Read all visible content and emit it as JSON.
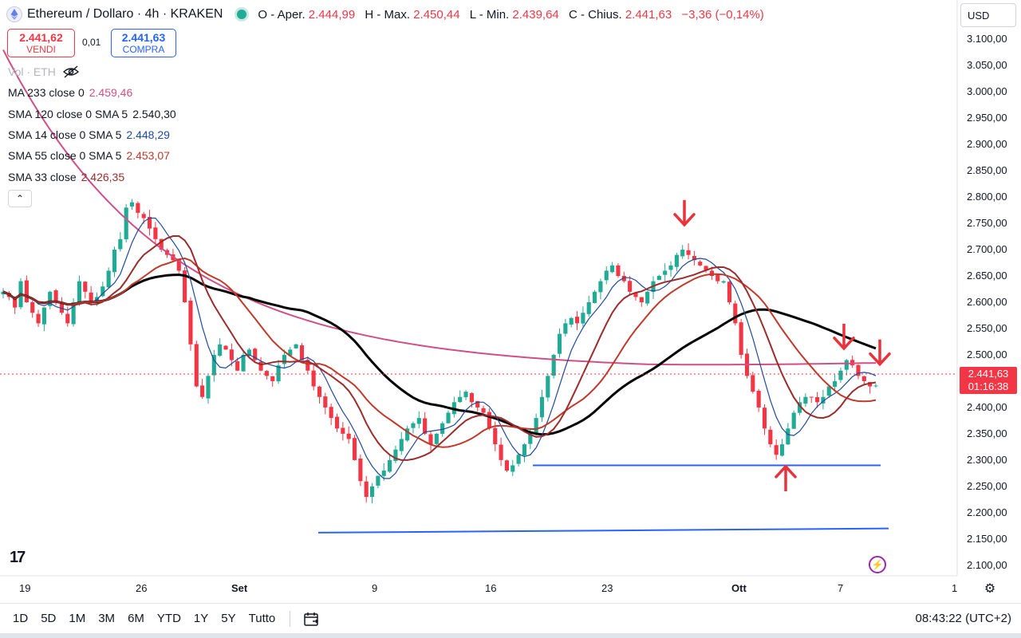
{
  "header": {
    "symbol_title": "Ethereum / Dollaro · 4h · KRAKEN",
    "open_label": "O - Aper.",
    "open_value": "2.444,99",
    "high_label": "H - Max.",
    "high_value": "2.450,44",
    "low_label": "L - Min.",
    "low_value": "2.439,64",
    "close_label": "C - Chius.",
    "close_value": "2.441,63",
    "change": "−3,36 (−0,14%)"
  },
  "currency": "USD",
  "trade": {
    "sell_price": "2.441,62",
    "sell_label": "VENDI",
    "spread": "0,01",
    "buy_price": "2.441,63",
    "buy_label": "COMPRA"
  },
  "volume_label": "Vol · ETH",
  "indicators": [
    {
      "label": "MA 233 close 0",
      "value": "2.459,46",
      "color": "#d04f86"
    },
    {
      "label": "SMA 120 close 0 SMA 5",
      "value": "2.540,30",
      "color": "#131722"
    },
    {
      "label": "SMA 14 close 0 SMA 5",
      "value": "2.448,29",
      "color": "#1e4a9c"
    },
    {
      "label": "SMA 55 close 0 SMA 5",
      "value": "2.453,07",
      "color": "#c0392b"
    },
    {
      "label": "SMA 33 close",
      "value": "2.426,35",
      "color": "#9b2c2c"
    }
  ],
  "price_scale": [
    "3.100,00",
    "3.050,00",
    "3.000,00",
    "2.950,00",
    "2.900,00",
    "2.850,00",
    "2.800,00",
    "2.750,00",
    "2.700,00",
    "2.650,00",
    "2.600,00",
    "2.550,00",
    "2.500,00",
    "2.450,00",
    "2.400,00",
    "2.350,00",
    "2.300,00",
    "2.250,00",
    "2.200,00",
    "2.150,00",
    "2.100,00"
  ],
  "last_price": {
    "price": "2.441,63",
    "countdown": "01:16:38"
  },
  "time_axis": [
    {
      "label": "19",
      "bold": false
    },
    {
      "label": "26",
      "bold": false
    },
    {
      "label": "Set",
      "bold": true
    },
    {
      "label": "9",
      "bold": false
    },
    {
      "label": "16",
      "bold": false
    },
    {
      "label": "23",
      "bold": false
    },
    {
      "label": "Ott",
      "bold": true
    },
    {
      "label": "7",
      "bold": false
    },
    {
      "label": "1",
      "bold": false
    }
  ],
  "ranges": [
    "1D",
    "5D",
    "1M",
    "3M",
    "6M",
    "YTD",
    "1Y",
    "5Y",
    "Tutto"
  ],
  "clock": "08:43:22 (UTC+2)",
  "colors": {
    "up": "#22ab94",
    "down": "#f23645",
    "ma233": "#d04f86",
    "sma120": "#000000",
    "sma14": "#1e4a9c",
    "sma55": "#c0392b",
    "sma33": "#9b2c2c",
    "support": "#2962ff",
    "arrows": "#e8323c"
  },
  "chart_data": {
    "type": "candlestick",
    "ylim": [
      2080,
      3120
    ],
    "close_series": [
      2620,
      2610,
      2590,
      2640,
      2600,
      2580,
      2560,
      2590,
      2620,
      2600,
      2580,
      2560,
      2600,
      2640,
      2620,
      2600,
      2610,
      2630,
      2660,
      2700,
      2720,
      2780,
      2790,
      2770,
      2760,
      2740,
      2720,
      2700,
      2690,
      2680,
      2660,
      2600,
      2520,
      2440,
      2420,
      2460,
      2500,
      2520,
      2510,
      2490,
      2470,
      2500,
      2510,
      2490,
      2470,
      2460,
      2450,
      2480,
      2500,
      2510,
      2520,
      2490,
      2470,
      2440,
      2420,
      2400,
      2380,
      2360,
      2350,
      2340,
      2300,
      2260,
      2230,
      2250,
      2270,
      2280,
      2300,
      2320,
      2340,
      2360,
      2370,
      2380,
      2350,
      2330,
      2350,
      2370,
      2390,
      2410,
      2420,
      2430,
      2410,
      2400,
      2390,
      2360,
      2330,
      2300,
      2280,
      2290,
      2310,
      2330,
      2350,
      2380,
      2420,
      2460,
      2500,
      2540,
      2560,
      2570,
      2560,
      2580,
      2600,
      2620,
      2640,
      2660,
      2670,
      2650,
      2640,
      2620,
      2610,
      2600,
      2620,
      2640,
      2650,
      2660,
      2670,
      2690,
      2700,
      2690,
      2680,
      2670,
      2660,
      2650,
      2640,
      2640,
      2600,
      2560,
      2500,
      2460,
      2430,
      2400,
      2360,
      2330,
      2310,
      2330,
      2360,
      2390,
      2410,
      2420,
      2420,
      2410,
      2420,
      2440,
      2450,
      2470,
      2490,
      2480,
      2460,
      2450,
      2440,
      2441.63
    ],
    "support_lines": [
      {
        "from": 2290,
        "to": 2290,
        "label": ""
      },
      {
        "from": 2162,
        "to": 2170,
        "label": ""
      }
    ],
    "annotations": [
      {
        "type": "arrow-down",
        "at_price": 2770
      },
      {
        "type": "arrow-down",
        "at_price": 2535
      },
      {
        "type": "arrow-down",
        "at_price": 2505
      },
      {
        "type": "arrow-up",
        "at_price": 2265
      }
    ]
  }
}
